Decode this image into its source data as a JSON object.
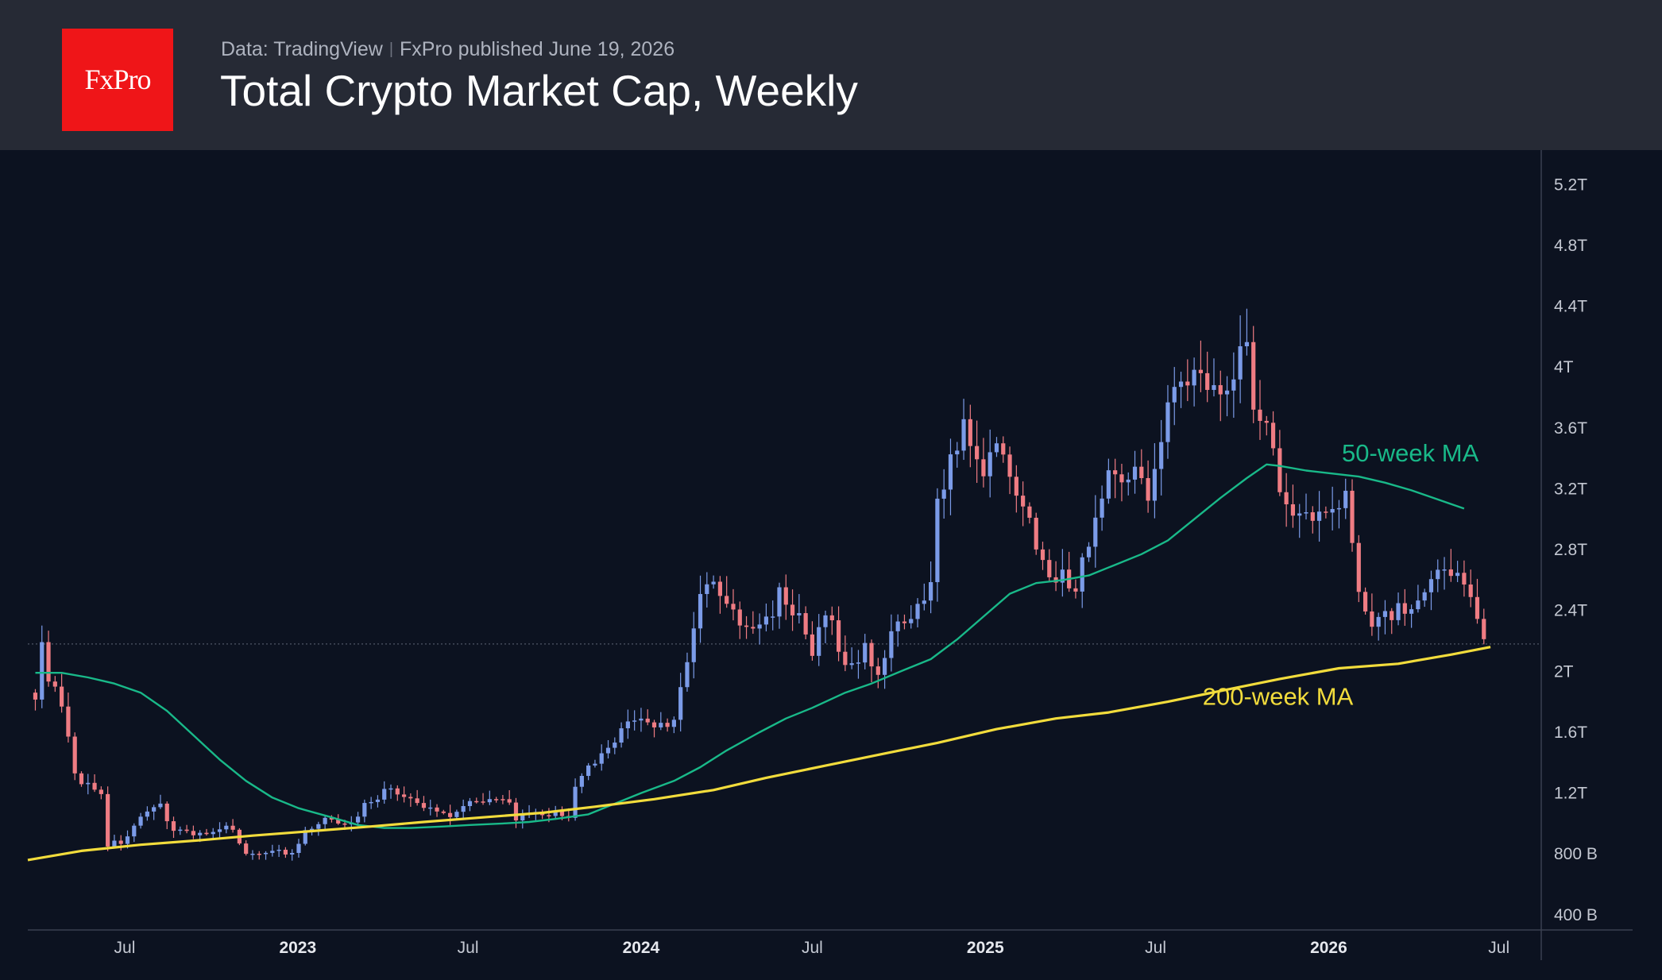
{
  "header": {
    "logo_text": "FxPro",
    "source": "Data: TradingView",
    "published": "FxPro published June 19, 2026",
    "title": "Total Crypto Market Cap, Weekly"
  },
  "colors": {
    "background": "#0c1220",
    "header": "#262a35",
    "brand": "#ef1518",
    "up": "#7b9be8",
    "down": "#ef7c83",
    "ma50": "#19b989",
    "ma200": "#f2dc3c"
  },
  "chart_data": {
    "type": "candlestick",
    "title": "Total Crypto Market Cap, Weekly",
    "unit": "USD",
    "y_ticks": [
      "400 B",
      "800 B",
      "1.2T",
      "1.6T",
      "2T",
      "2.4T",
      "2.8T",
      "3.2T",
      "3.6T",
      "4T",
      "4.4T",
      "4.8T",
      "5.2T"
    ],
    "y_tick_values": [
      0.4,
      0.8,
      1.2,
      1.6,
      2.0,
      2.4,
      2.8,
      3.2,
      3.6,
      4.0,
      4.4,
      4.8,
      5.2
    ],
    "ylim": [
      0.3,
      5.4
    ],
    "x_ticks": [
      {
        "label": "Jul",
        "date": "2022-07-01",
        "major": false
      },
      {
        "label": "2023",
        "date": "2023-01-01",
        "major": true
      },
      {
        "label": "Jul",
        "date": "2023-07-01",
        "major": false
      },
      {
        "label": "2024",
        "date": "2024-01-01",
        "major": true
      },
      {
        "label": "Jul",
        "date": "2024-07-01",
        "major": false
      },
      {
        "label": "2025",
        "date": "2025-01-01",
        "major": true
      },
      {
        "label": "Jul",
        "date": "2025-07-01",
        "major": false
      },
      {
        "label": "2026",
        "date": "2026-01-01",
        "major": true
      },
      {
        "label": "Jul",
        "date": "2026-07-01",
        "major": false
      }
    ],
    "xlim": [
      "2022-03-20",
      "2026-08-15"
    ],
    "last_close": 2.18,
    "annotations": [
      {
        "text": "50-week MA",
        "series": "50-week MA",
        "date": "2026-01-15",
        "value": 3.38
      },
      {
        "text": "200-week MA",
        "series": "200-week MA",
        "date": "2025-08-20",
        "value": 1.78
      }
    ],
    "price_path": [
      [
        "2022-03-28",
        1.86
      ],
      [
        "2022-04-04",
        2.14
      ],
      [
        "2022-04-11",
        1.98
      ],
      [
        "2022-04-25",
        1.75
      ],
      [
        "2022-05-09",
        1.32
      ],
      [
        "2022-05-23",
        1.25
      ],
      [
        "2022-06-06",
        1.21
      ],
      [
        "2022-06-13",
        0.86
      ],
      [
        "2022-06-27",
        0.88
      ],
      [
        "2022-07-18",
        1.02
      ],
      [
        "2022-08-08",
        1.12
      ],
      [
        "2022-08-22",
        0.96
      ],
      [
        "2022-09-12",
        0.94
      ],
      [
        "2022-10-03",
        0.93
      ],
      [
        "2022-10-24",
        0.98
      ],
      [
        "2022-11-07",
        0.79
      ],
      [
        "2022-12-05",
        0.83
      ],
      [
        "2022-12-26",
        0.79
      ],
      [
        "2023-01-09",
        0.94
      ],
      [
        "2023-02-06",
        1.04
      ],
      [
        "2023-02-27",
        0.99
      ],
      [
        "2023-03-13",
        1.13
      ],
      [
        "2023-04-10",
        1.23
      ],
      [
        "2023-05-08",
        1.12
      ],
      [
        "2023-06-12",
        1.06
      ],
      [
        "2023-07-10",
        1.17
      ],
      [
        "2023-08-14",
        1.13
      ],
      [
        "2023-08-21",
        1.04
      ],
      [
        "2023-09-25",
        1.06
      ],
      [
        "2023-10-16",
        1.06
      ],
      [
        "2023-10-23",
        1.22
      ],
      [
        "2023-11-06",
        1.36
      ],
      [
        "2023-11-27",
        1.47
      ],
      [
        "2023-12-11",
        1.65
      ],
      [
        "2023-12-25",
        1.68
      ],
      [
        "2024-01-22",
        1.65
      ],
      [
        "2024-02-05",
        1.68
      ],
      [
        "2024-02-19",
        2.05
      ],
      [
        "2024-03-04",
        2.48
      ],
      [
        "2024-03-11",
        2.59
      ],
      [
        "2024-04-01",
        2.46
      ],
      [
        "2024-04-15",
        2.28
      ],
      [
        "2024-05-13",
        2.32
      ],
      [
        "2024-05-27",
        2.52
      ],
      [
        "2024-06-17",
        2.34
      ],
      [
        "2024-07-01",
        2.08
      ],
      [
        "2024-07-15",
        2.42
      ],
      [
        "2024-08-05",
        2.02
      ],
      [
        "2024-08-26",
        2.14
      ],
      [
        "2024-09-09",
        2.0
      ],
      [
        "2024-09-23",
        2.25
      ],
      [
        "2024-10-14",
        2.32
      ],
      [
        "2024-11-04",
        2.54
      ],
      [
        "2024-11-11",
        3.12
      ],
      [
        "2024-11-25",
        3.41
      ],
      [
        "2024-12-09",
        3.59
      ],
      [
        "2024-12-23",
        3.32
      ],
      [
        "2025-01-20",
        3.47
      ],
      [
        "2025-02-03",
        3.2
      ],
      [
        "2025-02-24",
        2.85
      ],
      [
        "2025-03-10",
        2.68
      ],
      [
        "2025-04-07",
        2.55
      ],
      [
        "2025-04-21",
        2.88
      ],
      [
        "2025-05-12",
        3.28
      ],
      [
        "2025-06-02",
        3.34
      ],
      [
        "2025-06-23",
        3.18
      ],
      [
        "2025-07-14",
        3.78
      ],
      [
        "2025-08-11",
        3.95
      ],
      [
        "2025-08-25",
        3.86
      ],
      [
        "2025-09-15",
        3.93
      ],
      [
        "2025-10-06",
        4.17
      ],
      [
        "2025-10-13",
        3.8
      ],
      [
        "2025-11-03",
        3.45
      ],
      [
        "2025-11-17",
        3.06
      ],
      [
        "2025-12-08",
        3.05
      ],
      [
        "2025-12-29",
        3.02
      ],
      [
        "2026-01-19",
        3.12
      ],
      [
        "2026-02-02",
        2.55
      ],
      [
        "2026-02-16",
        2.35
      ],
      [
        "2026-03-16",
        2.4
      ],
      [
        "2026-04-06",
        2.42
      ],
      [
        "2026-04-27",
        2.62
      ],
      [
        "2026-05-11",
        2.66
      ],
      [
        "2026-06-01",
        2.55
      ],
      [
        "2026-06-15",
        2.18
      ]
    ],
    "series": [
      {
        "name": "50-week MA",
        "color": "#19b989",
        "points": [
          [
            "2022-03-28",
            1.99
          ],
          [
            "2022-04-25",
            1.99
          ],
          [
            "2022-05-23",
            1.96
          ],
          [
            "2022-06-20",
            1.92
          ],
          [
            "2022-07-18",
            1.86
          ],
          [
            "2022-08-15",
            1.74
          ],
          [
            "2022-09-12",
            1.58
          ],
          [
            "2022-10-10",
            1.42
          ],
          [
            "2022-11-07",
            1.28
          ],
          [
            "2022-12-05",
            1.17
          ],
          [
            "2023-01-02",
            1.1
          ],
          [
            "2023-02-06",
            1.04
          ],
          [
            "2023-03-06",
            0.99
          ],
          [
            "2023-04-03",
            0.97
          ],
          [
            "2023-05-01",
            0.97
          ],
          [
            "2023-06-05",
            0.98
          ],
          [
            "2023-07-03",
            0.99
          ],
          [
            "2023-08-07",
            1.0
          ],
          [
            "2023-09-04",
            1.01
          ],
          [
            "2023-10-02",
            1.03
          ],
          [
            "2023-11-06",
            1.06
          ],
          [
            "2023-12-04",
            1.13
          ],
          [
            "2024-01-01",
            1.2
          ],
          [
            "2024-02-05",
            1.28
          ],
          [
            "2024-03-04",
            1.37
          ],
          [
            "2024-04-01",
            1.48
          ],
          [
            "2024-05-06",
            1.6
          ],
          [
            "2024-06-03",
            1.69
          ],
          [
            "2024-07-01",
            1.76
          ],
          [
            "2024-08-05",
            1.86
          ],
          [
            "2024-09-02",
            1.92
          ],
          [
            "2024-10-07",
            2.01
          ],
          [
            "2024-11-04",
            2.08
          ],
          [
            "2024-12-02",
            2.21
          ],
          [
            "2024-12-30",
            2.36
          ],
          [
            "2025-01-27",
            2.51
          ],
          [
            "2025-02-24",
            2.58
          ],
          [
            "2025-03-24",
            2.6
          ],
          [
            "2025-04-21",
            2.63
          ],
          [
            "2025-05-19",
            2.7
          ],
          [
            "2025-06-16",
            2.77
          ],
          [
            "2025-07-14",
            2.86
          ],
          [
            "2025-08-11",
            3.0
          ],
          [
            "2025-09-08",
            3.14
          ],
          [
            "2025-10-06",
            3.27
          ],
          [
            "2025-10-27",
            3.36
          ],
          [
            "2025-11-10",
            3.35
          ],
          [
            "2025-12-08",
            3.32
          ],
          [
            "2026-01-05",
            3.3
          ],
          [
            "2026-02-02",
            3.28
          ],
          [
            "2026-03-02",
            3.24
          ],
          [
            "2026-03-30",
            3.19
          ],
          [
            "2026-04-27",
            3.13
          ],
          [
            "2026-05-25",
            3.07
          ]
        ]
      },
      {
        "name": "200-week MA",
        "color": "#f2dc3c",
        "points": [
          [
            "2022-03-20",
            0.76
          ],
          [
            "2022-05-16",
            0.82
          ],
          [
            "2022-07-18",
            0.86
          ],
          [
            "2022-09-19",
            0.89
          ],
          [
            "2022-11-14",
            0.92
          ],
          [
            "2023-01-16",
            0.95
          ],
          [
            "2023-03-20",
            0.98
          ],
          [
            "2023-05-15",
            1.01
          ],
          [
            "2023-07-17",
            1.04
          ],
          [
            "2023-09-18",
            1.07
          ],
          [
            "2023-11-13",
            1.11
          ],
          [
            "2024-01-15",
            1.16
          ],
          [
            "2024-03-18",
            1.22
          ],
          [
            "2024-05-13",
            1.3
          ],
          [
            "2024-07-15",
            1.38
          ],
          [
            "2024-09-16",
            1.46
          ],
          [
            "2024-11-11",
            1.53
          ],
          [
            "2025-01-13",
            1.62
          ],
          [
            "2025-03-17",
            1.69
          ],
          [
            "2025-05-12",
            1.73
          ],
          [
            "2025-07-14",
            1.8
          ],
          [
            "2025-09-15",
            1.88
          ],
          [
            "2025-11-10",
            1.95
          ],
          [
            "2026-01-12",
            2.02
          ],
          [
            "2026-03-16",
            2.05
          ],
          [
            "2026-05-11",
            2.11
          ],
          [
            "2026-06-22",
            2.16
          ]
        ]
      }
    ]
  }
}
